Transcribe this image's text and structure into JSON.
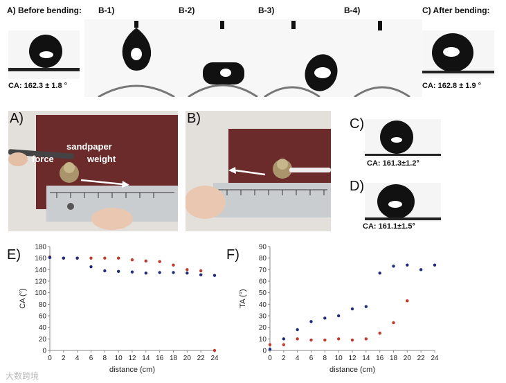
{
  "top_row": {
    "before_label": "A) Before bending:",
    "before_ca": "CA: 162.3 ± 1.8 °",
    "after_label": "C) After bending:",
    "after_ca": "CA: 162.8 ± 1.9 °",
    "b_labels": [
      "B-1)",
      "B-2)",
      "B-3)",
      "B-4)"
    ]
  },
  "middle_row": {
    "photo_a_letter": "A)",
    "photo_a_sandpaper": "sandpaper",
    "photo_a_weight": "weight",
    "photo_a_force": "force",
    "photo_b_letter": "B)",
    "panel_c_letter": "C)",
    "panel_c_ca": "CA: 161.3±1.2°",
    "panel_d_letter": "D)",
    "panel_d_ca": "CA: 161.1±1.5°"
  },
  "watermark": "大数跨境",
  "colors": {
    "red": "#c0392b",
    "blue": "#1f2d7a"
  },
  "chart_data": [
    {
      "panel": "E)",
      "type": "scatter",
      "title": "",
      "xlabel": "distance (cm)",
      "ylabel": "CA (°)",
      "xlim": [
        0,
        24
      ],
      "ylim": [
        0,
        180
      ],
      "xticks": [
        0,
        2,
        4,
        6,
        8,
        10,
        12,
        14,
        16,
        18,
        20,
        22,
        24
      ],
      "yticks": [
        0,
        20,
        40,
        60,
        80,
        100,
        120,
        140,
        160,
        180
      ],
      "series": [
        {
          "name": "red",
          "color": "#c0392b",
          "x": [
            0,
            2,
            4,
            6,
            8,
            10,
            12,
            14,
            16,
            18,
            20,
            22,
            24
          ],
          "y": [
            162,
            160,
            160,
            160,
            160,
            160,
            157,
            155,
            154,
            148,
            140,
            138,
            0
          ]
        },
        {
          "name": "blue",
          "color": "#1f2d7a",
          "x": [
            0,
            2,
            4,
            6,
            8,
            10,
            12,
            14,
            16,
            18,
            20,
            22,
            24
          ],
          "y": [
            161,
            160,
            160,
            145,
            138,
            137,
            136,
            134,
            135,
            135,
            134,
            131,
            130
          ]
        }
      ]
    },
    {
      "panel": "F)",
      "type": "scatter",
      "title": "",
      "xlabel": "distance (cm)",
      "ylabel": "TA (°)",
      "xlim": [
        0,
        24
      ],
      "ylim": [
        0,
        90
      ],
      "xticks": [
        0,
        2,
        4,
        6,
        8,
        10,
        12,
        14,
        16,
        18,
        20,
        22,
        24
      ],
      "yticks": [
        0,
        10,
        20,
        30,
        40,
        50,
        60,
        70,
        80,
        90
      ],
      "series": [
        {
          "name": "red",
          "color": "#c0392b",
          "x": [
            0,
            2,
            4,
            6,
            8,
            10,
            12,
            14,
            16,
            18,
            20
          ],
          "y": [
            5,
            5,
            10,
            9,
            9,
            10,
            9,
            10,
            15,
            24,
            43
          ]
        },
        {
          "name": "blue",
          "color": "#1f2d7a",
          "x": [
            0,
            2,
            4,
            6,
            8,
            10,
            12,
            14,
            16,
            18,
            20,
            22,
            24
          ],
          "y": [
            1,
            10,
            18,
            25,
            28,
            30,
            36,
            38,
            67,
            73,
            74,
            70,
            74
          ]
        }
      ]
    }
  ]
}
